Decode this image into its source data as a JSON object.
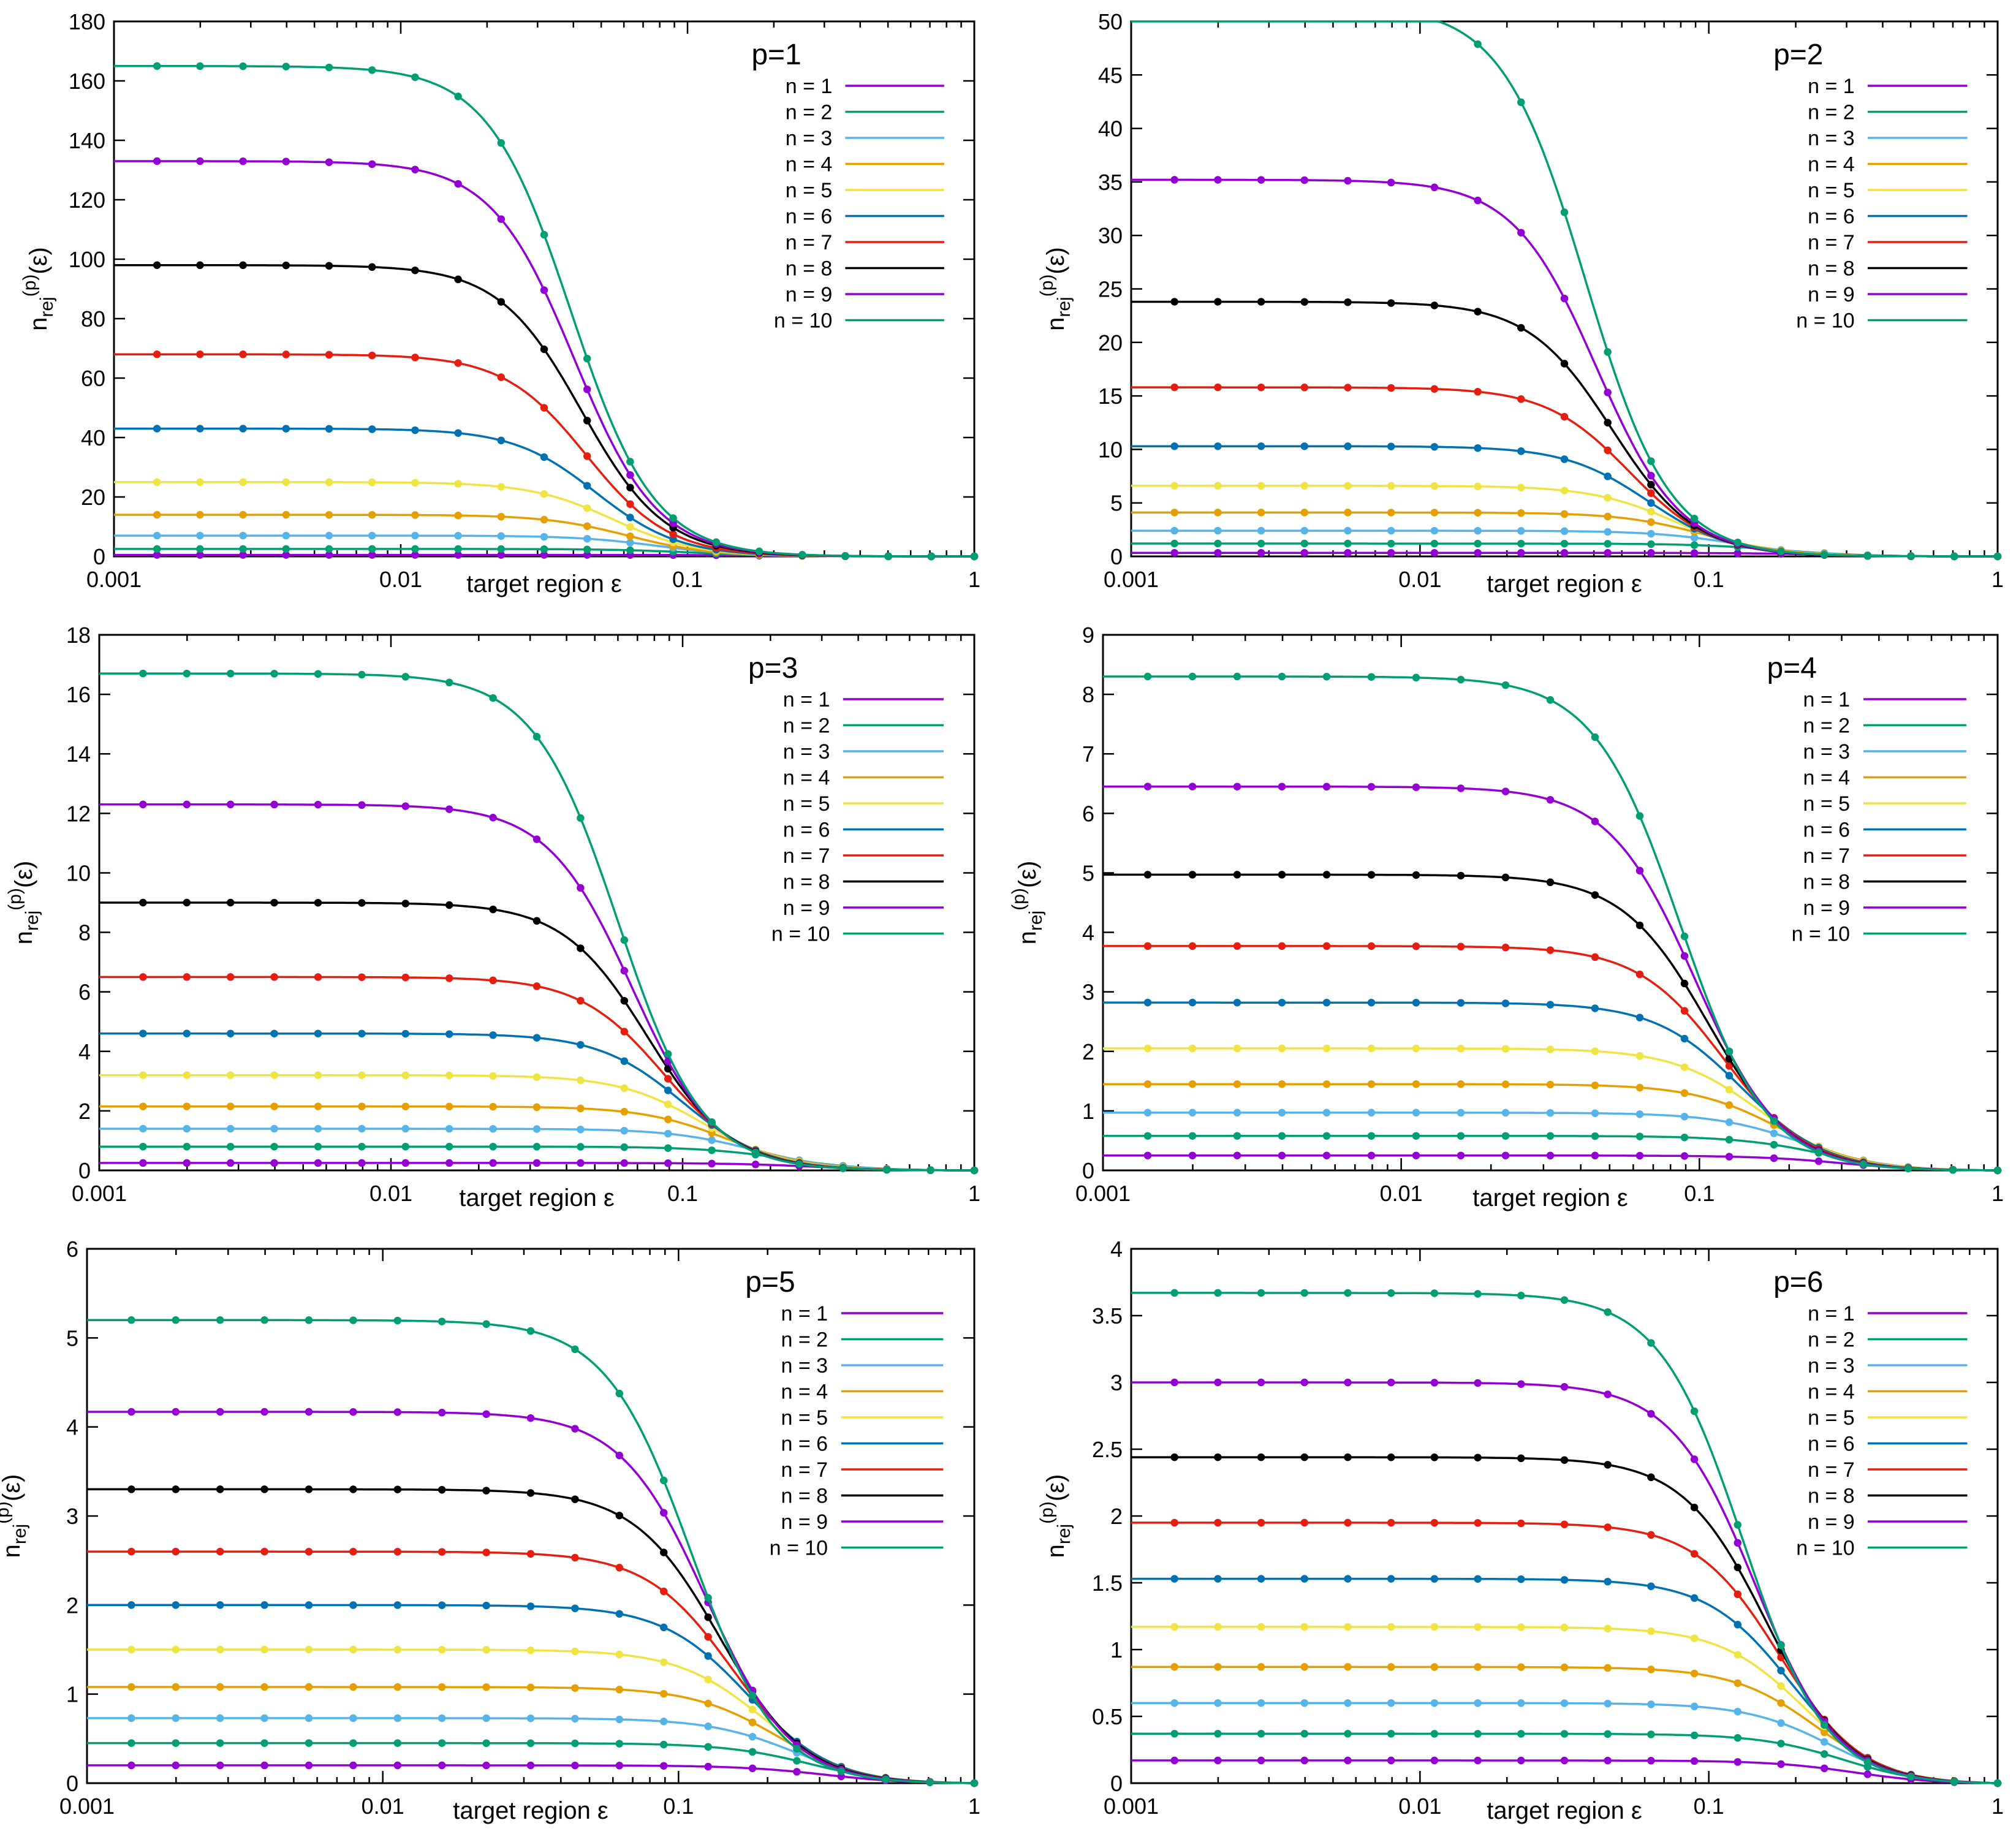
{
  "figure": {
    "panels": [
      {
        "title": "p=1",
        "ylabel_main": "n",
        "ylabel_sub": "rej",
        "ylabel_sup": "(p)",
        "ylabel_tail": "(ε)",
        "xlabel": "target region ε"
      },
      {
        "title": "p=2",
        "ylabel_main": "n",
        "ylabel_sub": "rej",
        "ylabel_sup": "(p)",
        "ylabel_tail": "(ε)",
        "xlabel": "target region ε"
      },
      {
        "title": "p=3",
        "ylabel_main": "n",
        "ylabel_sub": "rej",
        "ylabel_sup": "(p)",
        "ylabel_tail": "(ε)",
        "xlabel": "target region ε"
      },
      {
        "title": "p=4",
        "ylabel_main": "n",
        "ylabel_sub": "rej",
        "ylabel_sup": "(p)",
        "ylabel_tail": "(ε)",
        "xlabel": "target region ε"
      },
      {
        "title": "p=5",
        "ylabel_main": "n",
        "ylabel_sub": "rej",
        "ylabel_sup": "(p)",
        "ylabel_tail": "(ε)",
        "xlabel": "target region ε"
      },
      {
        "title": "p=6",
        "ylabel_main": "n",
        "ylabel_sub": "rej",
        "ylabel_sup": "(p)",
        "ylabel_tail": "(ε)",
        "xlabel": "target region ε"
      }
    ]
  },
  "chart_data": [
    {
      "type": "line",
      "title": "p=1",
      "xlabel": "target region ε",
      "ylabel": "n_rej^(p)(ε)",
      "xscale": "log",
      "xlim": [
        0.001,
        1
      ],
      "ylim": [
        0,
        180
      ],
      "xticks": [
        "0.001",
        "0.01",
        "0.1",
        "1"
      ],
      "yticks": [
        "0",
        "20",
        "40",
        "60",
        "80",
        "100",
        "120",
        "140",
        "160",
        "180"
      ],
      "yticks_values": [
        0,
        20,
        40,
        60,
        80,
        100,
        120,
        140,
        160,
        180
      ],
      "legend": "top-right",
      "grid": false,
      "series": [
        {
          "name": "n = 1",
          "color": "#9400d3",
          "plateau": 0.5,
          "pivot": 0.5
        },
        {
          "name": "n = 2",
          "color": "#009e73",
          "plateau": 2.5,
          "pivot": 0.25
        },
        {
          "name": "n = 3",
          "color": "#56b4e9",
          "plateau": 7,
          "pivot": 0.17
        },
        {
          "name": "n = 4",
          "color": "#e69f00",
          "plateau": 14,
          "pivot": 0.12
        },
        {
          "name": "n = 5",
          "color": "#f0e442",
          "plateau": 25,
          "pivot": 0.1
        },
        {
          "name": "n = 6",
          "color": "#0072b2",
          "plateau": 43,
          "pivot": 0.08
        },
        {
          "name": "n = 7",
          "color": "#e51e10",
          "plateau": 68,
          "pivot": 0.07
        },
        {
          "name": "n = 8",
          "color": "#000000",
          "plateau": 98,
          "pivot": 0.065
        },
        {
          "name": "n = 9",
          "color": "#9400d3",
          "plateau": 133,
          "pivot": 0.058
        },
        {
          "name": "n = 10",
          "color": "#009e73",
          "plateau": 165,
          "pivot": 0.055
        }
      ]
    },
    {
      "type": "line",
      "title": "p=2",
      "xlabel": "target region ε",
      "ylabel": "n_rej^(p)(ε)",
      "xscale": "log",
      "xlim": [
        0.001,
        1
      ],
      "ylim": [
        0,
        50
      ],
      "xticks": [
        "0.001",
        "0.01",
        "0.1",
        "1"
      ],
      "yticks": [
        "0",
        "5",
        "10",
        "15",
        "20",
        "25",
        "30",
        "35",
        "40",
        "45",
        "50"
      ],
      "yticks_values": [
        0,
        5,
        10,
        15,
        20,
        25,
        30,
        35,
        40,
        45,
        50
      ],
      "legend": "top-right",
      "grid": false,
      "series": [
        {
          "name": "n = 1",
          "color": "#9400d3",
          "plateau": 0.33,
          "pivot": 0.7
        },
        {
          "name": "n = 2",
          "color": "#009e73",
          "plateau": 1.2,
          "pivot": 0.45
        },
        {
          "name": "n = 3",
          "color": "#56b4e9",
          "plateau": 2.4,
          "pivot": 0.3
        },
        {
          "name": "n = 4",
          "color": "#e69f00",
          "plateau": 4.1,
          "pivot": 0.22
        },
        {
          "name": "n = 5",
          "color": "#f0e442",
          "plateau": 6.6,
          "pivot": 0.16
        },
        {
          "name": "n = 6",
          "color": "#0072b2",
          "plateau": 10.3,
          "pivot": 0.12
        },
        {
          "name": "n = 7",
          "color": "#e51e10",
          "plateau": 15.8,
          "pivot": 0.095
        },
        {
          "name": "n = 8",
          "color": "#000000",
          "plateau": 23.8,
          "pivot": 0.075
        },
        {
          "name": "n = 9",
          "color": "#9400d3",
          "plateau": 35.2,
          "pivot": 0.06
        },
        {
          "name": "n = 10",
          "color": "#009e73",
          "plateau": 51.5,
          "pivot": 0.05
        }
      ]
    },
    {
      "type": "line",
      "title": "p=3",
      "xlabel": "target region ε",
      "ylabel": "n_rej^(p)(ε)",
      "xscale": "log",
      "xlim": [
        0.001,
        1
      ],
      "ylim": [
        0,
        18
      ],
      "xticks": [
        "0.001",
        "0.01",
        "0.1",
        "1"
      ],
      "yticks": [
        "0",
        "2",
        "4",
        "6",
        "8",
        "10",
        "12",
        "14",
        "16",
        "18"
      ],
      "yticks_values": [
        0,
        2,
        4,
        6,
        8,
        10,
        12,
        14,
        16,
        18
      ],
      "legend": "top-right",
      "grid": false,
      "series": [
        {
          "name": "n = 1",
          "color": "#9400d3",
          "plateau": 0.25,
          "pivot": 0.79
        },
        {
          "name": "n = 2",
          "color": "#009e73",
          "plateau": 0.8,
          "pivot": 0.6
        },
        {
          "name": "n = 3",
          "color": "#56b4e9",
          "plateau": 1.4,
          "pivot": 0.45
        },
        {
          "name": "n = 4",
          "color": "#e69f00",
          "plateau": 2.15,
          "pivot": 0.35
        },
        {
          "name": "n = 5",
          "color": "#f0e442",
          "plateau": 3.2,
          "pivot": 0.28
        },
        {
          "name": "n = 6",
          "color": "#0072b2",
          "plateau": 4.6,
          "pivot": 0.23
        },
        {
          "name": "n = 7",
          "color": "#e51e10",
          "plateau": 6.5,
          "pivot": 0.19
        },
        {
          "name": "n = 8",
          "color": "#000000",
          "plateau": 9.0,
          "pivot": 0.16
        },
        {
          "name": "n = 9",
          "color": "#9400d3",
          "plateau": 12.3,
          "pivot": 0.135
        },
        {
          "name": "n = 10",
          "color": "#009e73",
          "plateau": 16.7,
          "pivot": 0.115
        }
      ]
    },
    {
      "type": "line",
      "title": "p=4",
      "xlabel": "target region ε",
      "ylabel": "n_rej^(p)(ε)",
      "xscale": "log",
      "xlim": [
        0.001,
        1
      ],
      "ylim": [
        0,
        9
      ],
      "xticks": [
        "0.001",
        "0.01",
        "0.1",
        "1"
      ],
      "yticks": [
        "0",
        "1",
        "2",
        "3",
        "4",
        "5",
        "6",
        "7",
        "8",
        "9"
      ],
      "yticks_values": [
        0,
        1,
        2,
        3,
        4,
        5,
        6,
        7,
        8,
        9
      ],
      "legend": "top-right",
      "grid": false,
      "series": [
        {
          "name": "n = 1",
          "color": "#9400d3",
          "plateau": 0.25,
          "pivot": 0.84
        },
        {
          "name": "n = 2",
          "color": "#009e73",
          "plateau": 0.58,
          "pivot": 0.7
        },
        {
          "name": "n = 3",
          "color": "#56b4e9",
          "plateau": 0.97,
          "pivot": 0.58
        },
        {
          "name": "n = 4",
          "color": "#e69f00",
          "plateau": 1.45,
          "pivot": 0.48
        },
        {
          "name": "n = 5",
          "color": "#f0e442",
          "plateau": 2.05,
          "pivot": 0.4
        },
        {
          "name": "n = 6",
          "color": "#0072b2",
          "plateau": 2.82,
          "pivot": 0.34
        },
        {
          "name": "n = 7",
          "color": "#e51e10",
          "plateau": 3.77,
          "pivot": 0.29
        },
        {
          "name": "n = 8",
          "color": "#000000",
          "plateau": 4.97,
          "pivot": 0.25
        },
        {
          "name": "n = 9",
          "color": "#9400d3",
          "plateau": 6.45,
          "pivot": 0.22
        },
        {
          "name": "n = 10",
          "color": "#009e73",
          "plateau": 8.3,
          "pivot": 0.19
        }
      ]
    },
    {
      "type": "line",
      "title": "p=5",
      "xlabel": "target region ε",
      "ylabel": "n_rej^(p)(ε)",
      "xscale": "log",
      "xlim": [
        0.001,
        1
      ],
      "ylim": [
        0,
        6
      ],
      "xticks": [
        "0.001",
        "0.01",
        "0.1",
        "1"
      ],
      "yticks": [
        "0",
        "1",
        "2",
        "3",
        "4",
        "5",
        "6"
      ],
      "yticks_values": [
        0,
        1,
        2,
        3,
        4,
        5,
        6
      ],
      "legend": "top-right",
      "grid": false,
      "series": [
        {
          "name": "n = 1",
          "color": "#9400d3",
          "plateau": 0.2,
          "pivot": 0.87
        },
        {
          "name": "n = 2",
          "color": "#009e73",
          "plateau": 0.45,
          "pivot": 0.76
        },
        {
          "name": "n = 3",
          "color": "#56b4e9",
          "plateau": 0.73,
          "pivot": 0.66
        },
        {
          "name": "n = 4",
          "color": "#e69f00",
          "plateau": 1.08,
          "pivot": 0.57
        },
        {
          "name": "n = 5",
          "color": "#f0e442",
          "plateau": 1.5,
          "pivot": 0.5
        },
        {
          "name": "n = 6",
          "color": "#0072b2",
          "plateau": 2.0,
          "pivot": 0.44
        },
        {
          "name": "n = 7",
          "color": "#e51e10",
          "plateau": 2.6,
          "pivot": 0.38
        },
        {
          "name": "n = 8",
          "color": "#000000",
          "plateau": 3.3,
          "pivot": 0.34
        },
        {
          "name": "n = 9",
          "color": "#9400d3",
          "plateau": 4.17,
          "pivot": 0.3
        },
        {
          "name": "n = 10",
          "color": "#009e73",
          "plateau": 5.2,
          "pivot": 0.26
        }
      ]
    },
    {
      "type": "line",
      "title": "p=6",
      "xlabel": "target region ε",
      "ylabel": "n_rej^(p)(ε)",
      "xscale": "log",
      "xlim": [
        0.001,
        1
      ],
      "ylim": [
        0,
        4
      ],
      "xticks": [
        "0.001",
        "0.01",
        "0.1",
        "1"
      ],
      "yticks": [
        "0",
        "0.5",
        "1",
        "1.5",
        "2",
        "2.5",
        "3",
        "3.5",
        "4"
      ],
      "yticks_values": [
        0,
        0.5,
        1,
        1.5,
        2,
        2.5,
        3,
        3.5,
        4
      ],
      "legend": "top-right",
      "grid": false,
      "series": [
        {
          "name": "n = 1",
          "color": "#9400d3",
          "plateau": 0.17,
          "pivot": 0.89
        },
        {
          "name": "n = 2",
          "color": "#009e73",
          "plateau": 0.37,
          "pivot": 0.8
        },
        {
          "name": "n = 3",
          "color": "#56b4e9",
          "plateau": 0.6,
          "pivot": 0.71
        },
        {
          "name": "n = 4",
          "color": "#e69f00",
          "plateau": 0.87,
          "pivot": 0.63
        },
        {
          "name": "n = 5",
          "color": "#f0e442",
          "plateau": 1.17,
          "pivot": 0.56
        },
        {
          "name": "n = 6",
          "color": "#0072b2",
          "plateau": 1.53,
          "pivot": 0.5
        },
        {
          "name": "n = 7",
          "color": "#e51e10",
          "plateau": 1.95,
          "pivot": 0.45
        },
        {
          "name": "n = 8",
          "color": "#000000",
          "plateau": 2.44,
          "pivot": 0.4
        },
        {
          "name": "n = 9",
          "color": "#9400d3",
          "plateau": 3.0,
          "pivot": 0.36
        },
        {
          "name": "n = 10",
          "color": "#009e73",
          "plateau": 3.67,
          "pivot": 0.32
        }
      ]
    }
  ]
}
